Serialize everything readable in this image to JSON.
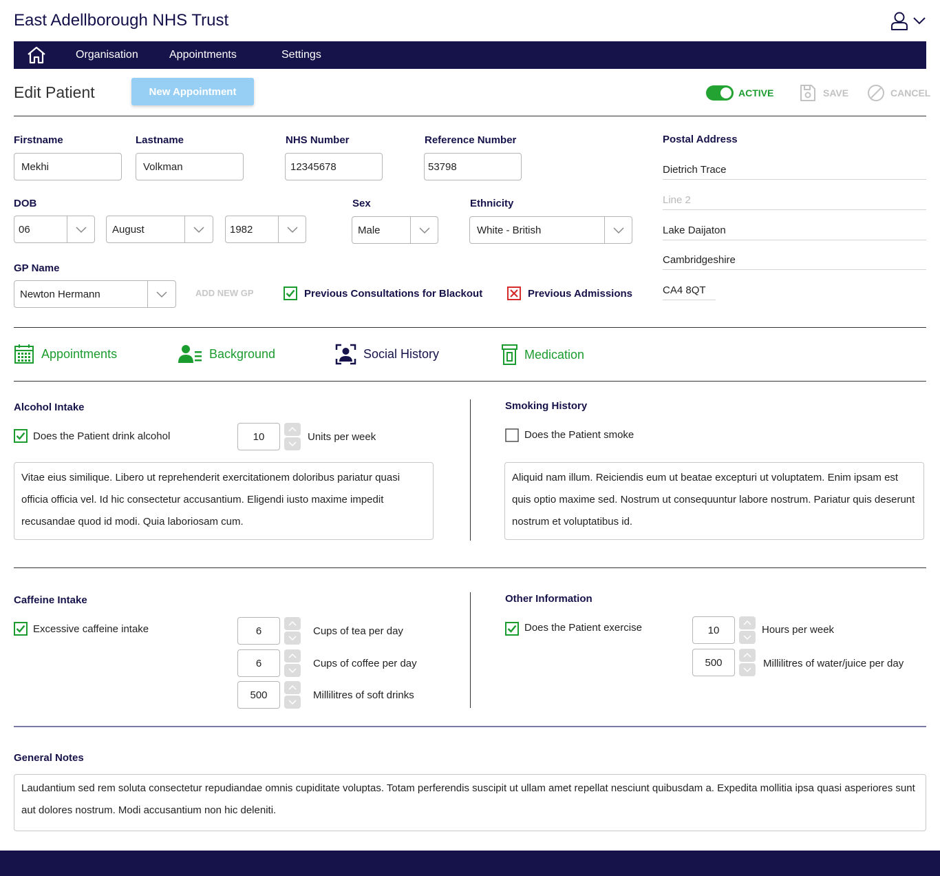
{
  "header": {
    "title": "East Adellborough NHS Trust",
    "user_icon": "user-icon",
    "menu_icon": "chevron-down-icon"
  },
  "nav": {
    "home_icon": "home-icon",
    "items": [
      {
        "label": "Organisation"
      },
      {
        "label": "Appointments"
      },
      {
        "label": "Settings"
      }
    ]
  },
  "toolbar": {
    "page_title": "Edit Patient",
    "new_appointment_label": "New Appointment",
    "active_label": "ACTIVE",
    "active": true,
    "save_label": "SAVE",
    "cancel_label": "CANCEL"
  },
  "patient": {
    "firstname_label": "Firstname",
    "firstname": "Mekhi",
    "lastname_label": "Lastname",
    "lastname": "Volkman",
    "nhs_label": "NHS Number",
    "nhs_number": "12345678",
    "ref_label": "Reference Number",
    "reference_number": "53798",
    "dob_label": "DOB",
    "dob_day": "06",
    "dob_month": "August",
    "dob_year": "1982",
    "sex_label": "Sex",
    "sex": "Male",
    "ethnicity_label": "Ethnicity",
    "ethnicity": "White - British",
    "gp_label": "GP Name",
    "gp_name": "Newton Hermann",
    "add_new_gp_label": "ADD NEW GP",
    "prev_consult_label": "Previous Consultations for Blackout",
    "prev_consult_checked": true,
    "prev_admissions_label": "Previous Admissions",
    "prev_admissions_checked": false
  },
  "address": {
    "label": "Postal Address",
    "line1": "Dietrich Trace",
    "line2_placeholder": "Line 2",
    "town": "Lake Daijaton",
    "county": "Cambridgeshire",
    "postcode": "CA4 8QT"
  },
  "tabs": [
    {
      "label": "Appointments",
      "icon": "calendar-icon",
      "color": "#1b9c2e"
    },
    {
      "label": "Background",
      "icon": "user-list-icon",
      "color": "#1b9c2e"
    },
    {
      "label": "Social History",
      "icon": "user-frame-icon",
      "color": "#16124a"
    },
    {
      "label": "Medication",
      "icon": "medicine-bottle-icon",
      "color": "#1b9c2e"
    }
  ],
  "alcohol": {
    "title": "Alcohol Intake",
    "question": "Does the Patient drink alcohol",
    "checked": true,
    "units_value": "10",
    "units_label": "Units per week",
    "notes": "Vitae eius similique. Libero ut reprehenderit exercitationem doloribus pariatur quasi officia officia vel. Id hic consectetur accusantium. Eligendi iusto maxime impedit recusandae quod id modi. Quia laboriosam cum."
  },
  "smoking": {
    "title": "Smoking History",
    "question": "Does the Patient smoke",
    "checked": false,
    "notes": "Aliquid nam illum. Reiciendis eum ut beatae excepturi ut voluptatem. Enim ipsam est quis optio maxime sed. Nostrum ut consequuntur labore nostrum. Pariatur quis deserunt nostrum et voluptatibus id."
  },
  "caffeine": {
    "title": "Caffeine Intake",
    "question": "Excessive caffeine intake",
    "checked": true,
    "tea_value": "6",
    "tea_label": "Cups of tea per day",
    "coffee_value": "6",
    "coffee_label": "Cups of coffee per day",
    "soft_value": "500",
    "soft_label": "Millilitres of soft drinks"
  },
  "other": {
    "title": "Other Information",
    "question": "Does the Patient exercise",
    "checked": true,
    "hours_value": "10",
    "hours_label": "Hours per week",
    "water_value": "500",
    "water_label": "Millilitres of water/juice per day"
  },
  "general_notes": {
    "title": "General Notes",
    "text": "Laudantium sed rem soluta consectetur repudiandae omnis cupiditate voluptas. Totam perferendis suscipit ut ullam amet repellat nesciunt quibusdam a. Expedita mollitia ipsa quasi asperiores sunt aut dolores nostrum. Modi accusantium non hic deleniti."
  },
  "colors": {
    "navy": "#16124a",
    "green": "#1b9c2e",
    "button_blue": "#97cff4",
    "disabled": "#c2c2c2",
    "error_red": "#d62b2b"
  }
}
